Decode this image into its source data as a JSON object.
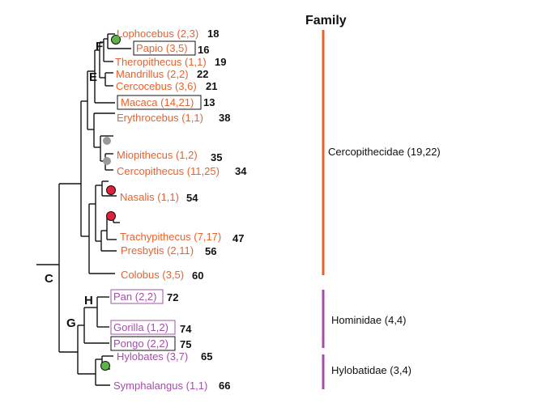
{
  "colors": {
    "cercopithecidae": "#e8622d",
    "hominoid": "#a34fa8",
    "branch": "#111111",
    "dot_green": "#5cb346",
    "dot_gray": "#9a9a9a",
    "dot_red": "#e0213c"
  },
  "header": {
    "family_label": "Family"
  },
  "families": [
    {
      "label": "Cercopithecidae (19,22)"
    },
    {
      "label": "Hominidae (4,4)"
    },
    {
      "label": "Hylobatidae (3,4)"
    }
  ],
  "nodes": [
    "F",
    "E",
    "C",
    "H",
    "G"
  ],
  "taxa": [
    {
      "name": "Lophocebus (2,3)",
      "num": "18"
    },
    {
      "name": "Papio (3,5)",
      "num": "16"
    },
    {
      "name": "Theropithecus (1,1)",
      "num": "19"
    },
    {
      "name": "Mandrillus (2,2)",
      "num": "22"
    },
    {
      "name": "Cercocebus (3,6)",
      "num": "21"
    },
    {
      "name": "Macaca (14,21)",
      "num": "13"
    },
    {
      "name": "Erythrocebus (1,1)",
      "num": "38"
    },
    {
      "name": "Miopithecus (1,2)",
      "num": "35"
    },
    {
      "name": "Cercopithecus (11,25)",
      "num": "34"
    },
    {
      "name": "Nasalis (1,1)",
      "num": "54"
    },
    {
      "name": "Trachypithecus (7,17)",
      "num": "47"
    },
    {
      "name": "Presbytis (2,11)",
      "num": "56"
    },
    {
      "name": "Colobus (3,5)",
      "num": "60"
    },
    {
      "name": "Pan (2,2)",
      "num": "72"
    },
    {
      "name": "Gorilla (1,2)",
      "num": "74"
    },
    {
      "name": "Pongo (2,2)",
      "num": "75"
    },
    {
      "name": "Hylobates (3,7)",
      "num": "65"
    },
    {
      "name": "Symphalangus (1,1)",
      "num": "66"
    }
  ]
}
